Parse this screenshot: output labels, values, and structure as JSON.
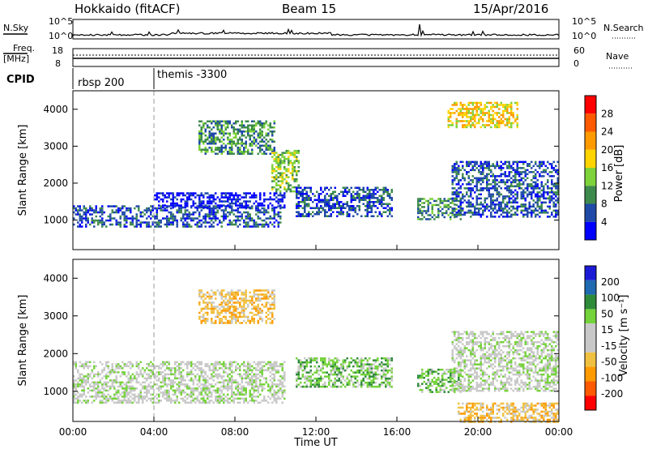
{
  "header": {
    "title": "Hokkaido (fitACF)",
    "beam": "Beam 15",
    "date": "15/Apr/2016"
  },
  "top_strip": {
    "nsky_label": "N.Sky",
    "nsearch_label": "N.Search",
    "noise_ticks": [
      "10^5",
      "10^0"
    ],
    "freq_label_1": "Freq.",
    "freq_label_2": "[MHz]",
    "freq_ticks": [
      "18",
      "8"
    ],
    "nave_label": "Nave",
    "nave_ticks": [
      "60",
      "0"
    ],
    "cpid_label": "CPID",
    "cpid_segments": [
      {
        "name": "rbsp 200",
        "start_hour": 0
      },
      {
        "name": "themis -3300",
        "start_hour": 4
      }
    ]
  },
  "chart_data": [
    {
      "type": "heatmap",
      "name": "power",
      "ylabel": "Slant Range [km]",
      "yticks": [
        1000,
        2000,
        3000,
        4000
      ],
      "ylim": [
        200,
        4500
      ],
      "xlim": [
        0,
        24
      ],
      "colorbar_label": "Power [dB]",
      "colorbar_ticks": [
        "28",
        "24",
        "20",
        "16",
        "12",
        "8",
        "4"
      ],
      "colors": [
        "#ff0000",
        "#ff5a00",
        "#ff9a00",
        "#ffd400",
        "#7ed23a",
        "#3d8a4c",
        "#1f4aa8",
        "#0000ff"
      ],
      "regions": [
        {
          "t": [
            0.0,
            10.3
          ],
          "r": [
            800,
            1400
          ],
          "level": 6
        },
        {
          "t": [
            4.0,
            10.5
          ],
          "r": [
            1350,
            1750
          ],
          "level": 7
        },
        {
          "t": [
            6.2,
            10.0
          ],
          "r": [
            2800,
            3700
          ],
          "level": 5
        },
        {
          "t": [
            9.8,
            11.2
          ],
          "r": [
            1800,
            2900
          ],
          "level": 4
        },
        {
          "t": [
            11.0,
            15.8
          ],
          "r": [
            1100,
            1900
          ],
          "level": 6
        },
        {
          "t": [
            17.0,
            19.2
          ],
          "r": [
            1000,
            1600
          ],
          "level": 5
        },
        {
          "t": [
            18.7,
            24.0
          ],
          "r": [
            1100,
            2600
          ],
          "level": 6
        },
        {
          "t": [
            18.5,
            22.0
          ],
          "r": [
            3500,
            4200
          ],
          "level": 3
        }
      ]
    },
    {
      "type": "heatmap",
      "name": "velocity",
      "ylabel": "Slant Range [km]",
      "yticks": [
        1000,
        2000,
        3000,
        4000
      ],
      "ylim": [
        200,
        4500
      ],
      "xlim": [
        0,
        24
      ],
      "xlabel": "Time UT",
      "xticks": [
        "00:00",
        "04:00",
        "08:00",
        "12:00",
        "16:00",
        "20:00",
        "00:00"
      ],
      "colorbar_label": "Velocity [m s⁻¹]",
      "colorbar_ticks": [
        "200",
        "100",
        "50",
        "15",
        "-15",
        "-50",
        "-100",
        "-200"
      ],
      "colors": [
        "#1b1bd6",
        "#1f6ab0",
        "#2e8b3a",
        "#74d23a",
        "#c8c8c8",
        "#c8c8c8",
        "#f0c040",
        "#ff9a00",
        "#ff5a00",
        "#ff0000"
      ],
      "regions": [
        {
          "t": [
            0.0,
            10.5
          ],
          "r": [
            700,
            1800
          ],
          "level": 4
        },
        {
          "t": [
            6.2,
            10.0
          ],
          "r": [
            2800,
            3700
          ],
          "level": 6
        },
        {
          "t": [
            11.0,
            15.8
          ],
          "r": [
            1100,
            1900
          ],
          "level": 3
        },
        {
          "t": [
            17.0,
            19.2
          ],
          "r": [
            1000,
            1600
          ],
          "level": 3
        },
        {
          "t": [
            18.7,
            24.0
          ],
          "r": [
            1000,
            2600
          ],
          "level": 4
        },
        {
          "t": [
            19.0,
            24.0
          ],
          "r": [
            200,
            700
          ],
          "level": 6
        }
      ]
    }
  ]
}
